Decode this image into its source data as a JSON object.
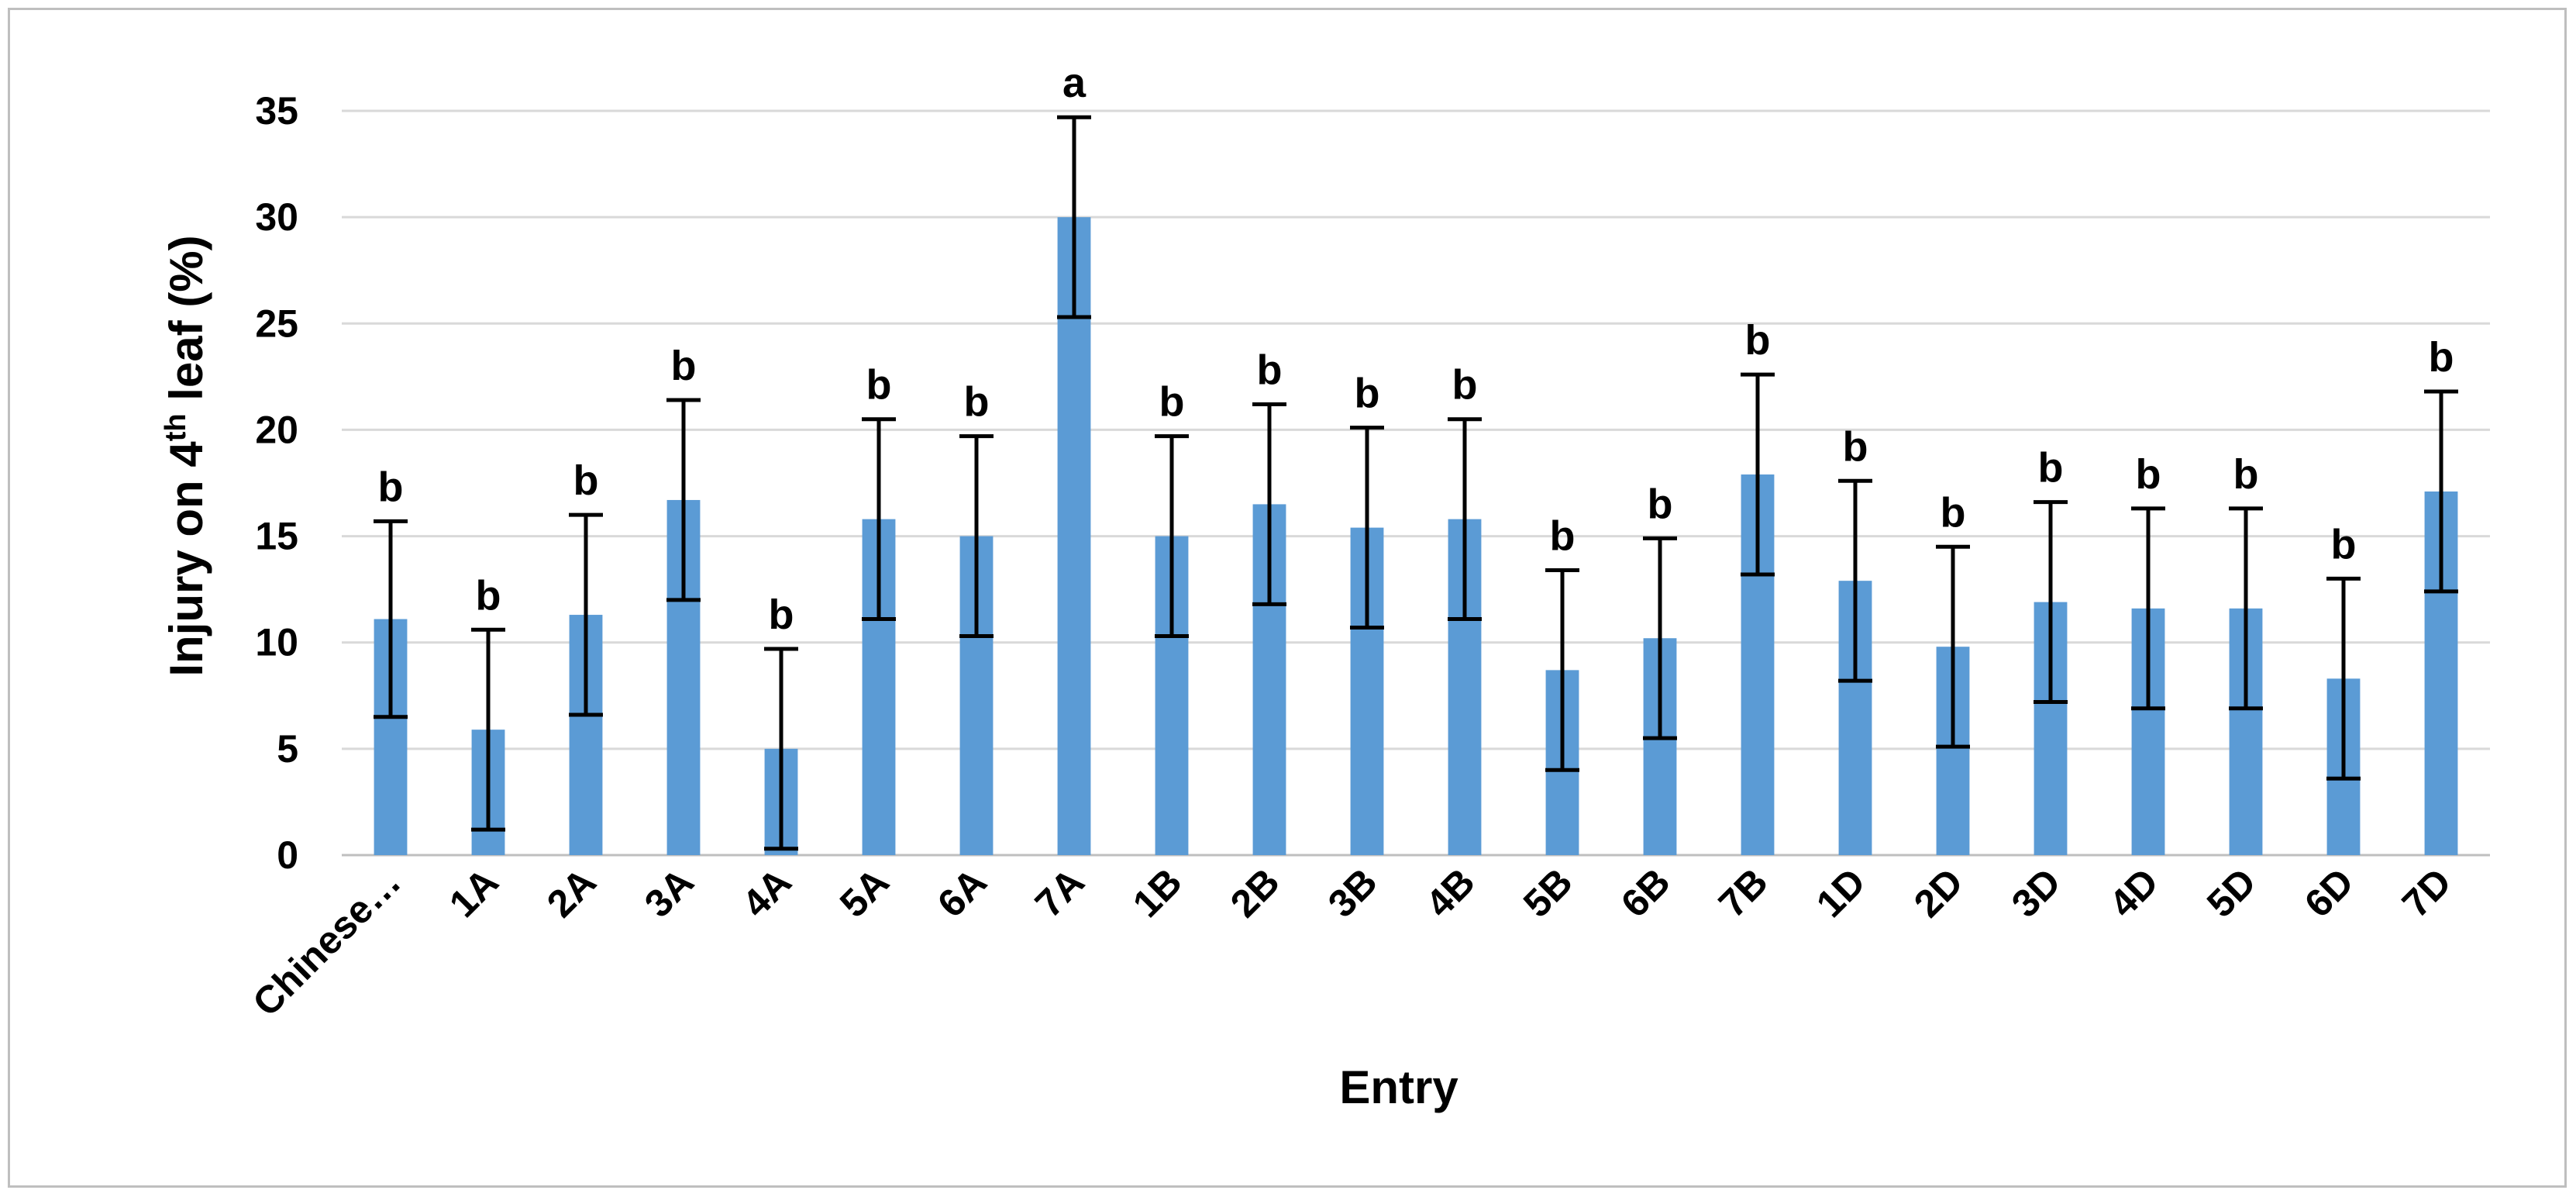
{
  "chart_data": {
    "type": "bar",
    "title": "",
    "xlabel": "Entry",
    "ylabel": {
      "pre": "Injury on 4",
      "sup": "th",
      "post": " leaf (%)"
    },
    "ylim": [
      0,
      35
    ],
    "yticks": [
      "0",
      "5",
      "10",
      "15",
      "20",
      "25",
      "30",
      "35"
    ],
    "grid": true,
    "legend": "none",
    "bar_color": "#5b9bd5",
    "gridline_color": "#d9d9d9",
    "categories": [
      "Chinese…",
      "1A",
      "2A",
      "3A",
      "4A",
      "5A",
      "6A",
      "7A",
      "1B",
      "2B",
      "3B",
      "4B",
      "5B",
      "6B",
      "7B",
      "1D",
      "2D",
      "3D",
      "4D",
      "5D",
      "6D",
      "7D"
    ],
    "values": [
      11.1,
      5.9,
      11.3,
      16.7,
      5.0,
      15.8,
      15.0,
      30.0,
      15.0,
      16.5,
      15.4,
      15.8,
      8.7,
      10.2,
      17.9,
      12.9,
      9.8,
      11.9,
      11.6,
      11.6,
      8.3,
      17.1
    ],
    "error": [
      4.6,
      4.7,
      4.7,
      4.7,
      4.7,
      4.7,
      4.7,
      4.7,
      4.7,
      4.7,
      4.7,
      4.7,
      4.7,
      4.7,
      4.7,
      4.7,
      4.7,
      4.7,
      4.7,
      4.7,
      4.7,
      4.7
    ],
    "letters": [
      "b",
      "b",
      "b",
      "b",
      "b",
      "b",
      "b",
      "a",
      "b",
      "b",
      "b",
      "b",
      "b",
      "b",
      "b",
      "b",
      "b",
      "b",
      "b",
      "b",
      "b",
      "b"
    ]
  }
}
